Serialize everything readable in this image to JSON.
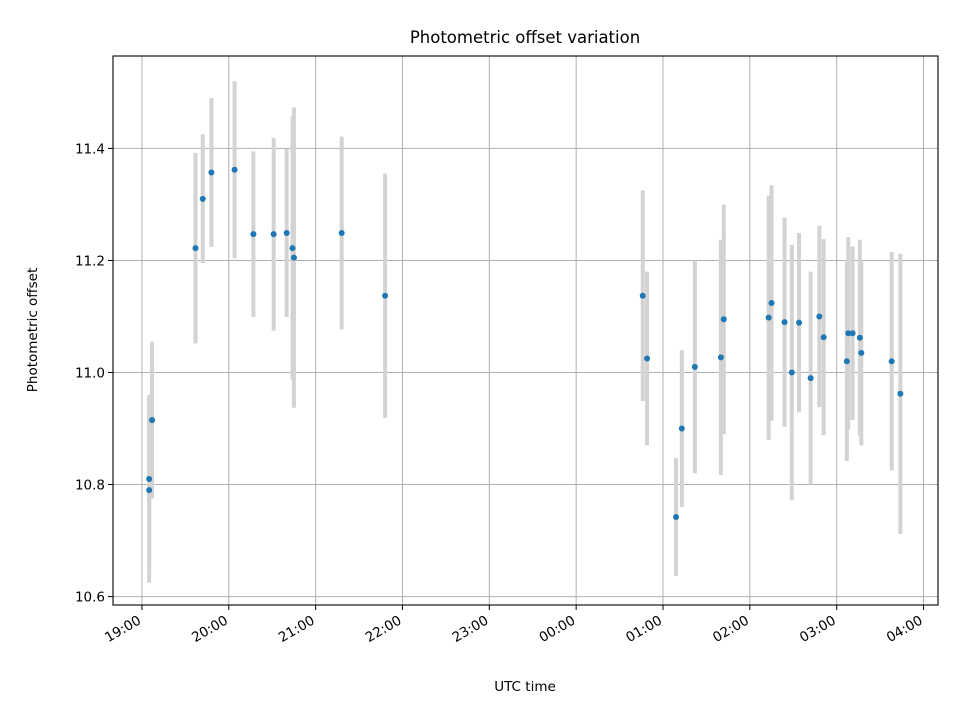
{
  "chart_data": {
    "type": "scatter",
    "title": "Photometric offset variation",
    "xlabel": "UTC time",
    "ylabel": "Photometric offset",
    "x_tick_labels": [
      "19:00",
      "20:00",
      "21:00",
      "22:00",
      "23:00",
      "00:00",
      "01:00",
      "02:00",
      "03:00",
      "04:00"
    ],
    "y_tick_labels": [
      "10.6",
      "10.8",
      "11.0",
      "11.2",
      "11.4"
    ],
    "y_ticks": [
      10.6,
      10.8,
      11.0,
      11.2,
      11.4
    ],
    "ylim": [
      10.585,
      11.565
    ],
    "xlim": [
      "18:40",
      "04:10"
    ],
    "grid": true,
    "colors": {
      "points": "#1f77b4",
      "errorbars": "#d3d3d3",
      "grid": "#b0b0b0"
    },
    "points": [
      {
        "t": "19:05",
        "y": 10.79,
        "err": 0.165
      },
      {
        "t": "19:05",
        "y": 10.81,
        "err": 0.15
      },
      {
        "t": "19:07",
        "y": 10.915,
        "err": 0.14
      },
      {
        "t": "19:37",
        "y": 11.222,
        "err": 0.17
      },
      {
        "t": "19:42",
        "y": 11.31,
        "err": 0.115
      },
      {
        "t": "19:48",
        "y": 11.357,
        "err": 0.133
      },
      {
        "t": "20:04",
        "y": 11.362,
        "err": 0.158
      },
      {
        "t": "20:17",
        "y": 11.247,
        "err": 0.148
      },
      {
        "t": "20:31",
        "y": 11.247,
        "err": 0.172
      },
      {
        "t": "20:40",
        "y": 11.249,
        "err": 0.15
      },
      {
        "t": "20:44",
        "y": 11.222,
        "err": 0.235
      },
      {
        "t": "20:45",
        "y": 11.205,
        "err": 0.268
      },
      {
        "t": "21:18",
        "y": 11.249,
        "err": 0.172
      },
      {
        "t": "21:48",
        "y": 11.137,
        "err": 0.218
      },
      {
        "t": "00:46",
        "y": 11.137,
        "err": 0.188
      },
      {
        "t": "00:49",
        "y": 11.025,
        "err": 0.155
      },
      {
        "t": "01:09",
        "y": 10.742,
        "err": 0.105
      },
      {
        "t": "01:13",
        "y": 10.9,
        "err": 0.14
      },
      {
        "t": "01:22",
        "y": 11.01,
        "err": 0.19
      },
      {
        "t": "01:40",
        "y": 11.027,
        "err": 0.21
      },
      {
        "t": "01:42",
        "y": 11.095,
        "err": 0.205
      },
      {
        "t": "02:13",
        "y": 11.098,
        "err": 0.218
      },
      {
        "t": "02:15",
        "y": 11.124,
        "err": 0.21
      },
      {
        "t": "02:24",
        "y": 11.09,
        "err": 0.187
      },
      {
        "t": "02:29",
        "y": 11.0,
        "err": 0.228
      },
      {
        "t": "02:34",
        "y": 11.089,
        "err": 0.16
      },
      {
        "t": "02:42",
        "y": 10.99,
        "err": 0.19
      },
      {
        "t": "02:48",
        "y": 11.1,
        "err": 0.162
      },
      {
        "t": "02:51",
        "y": 11.063,
        "err": 0.175
      },
      {
        "t": "03:07",
        "y": 11.02,
        "err": 0.178
      },
      {
        "t": "03:08",
        "y": 11.07,
        "err": 0.172
      },
      {
        "t": "03:11",
        "y": 11.07,
        "err": 0.155
      },
      {
        "t": "03:16",
        "y": 11.062,
        "err": 0.175
      },
      {
        "t": "03:17",
        "y": 11.035,
        "err": 0.165
      },
      {
        "t": "03:38",
        "y": 11.02,
        "err": 0.195
      },
      {
        "t": "03:44",
        "y": 10.962,
        "err": 0.25
      }
    ]
  }
}
